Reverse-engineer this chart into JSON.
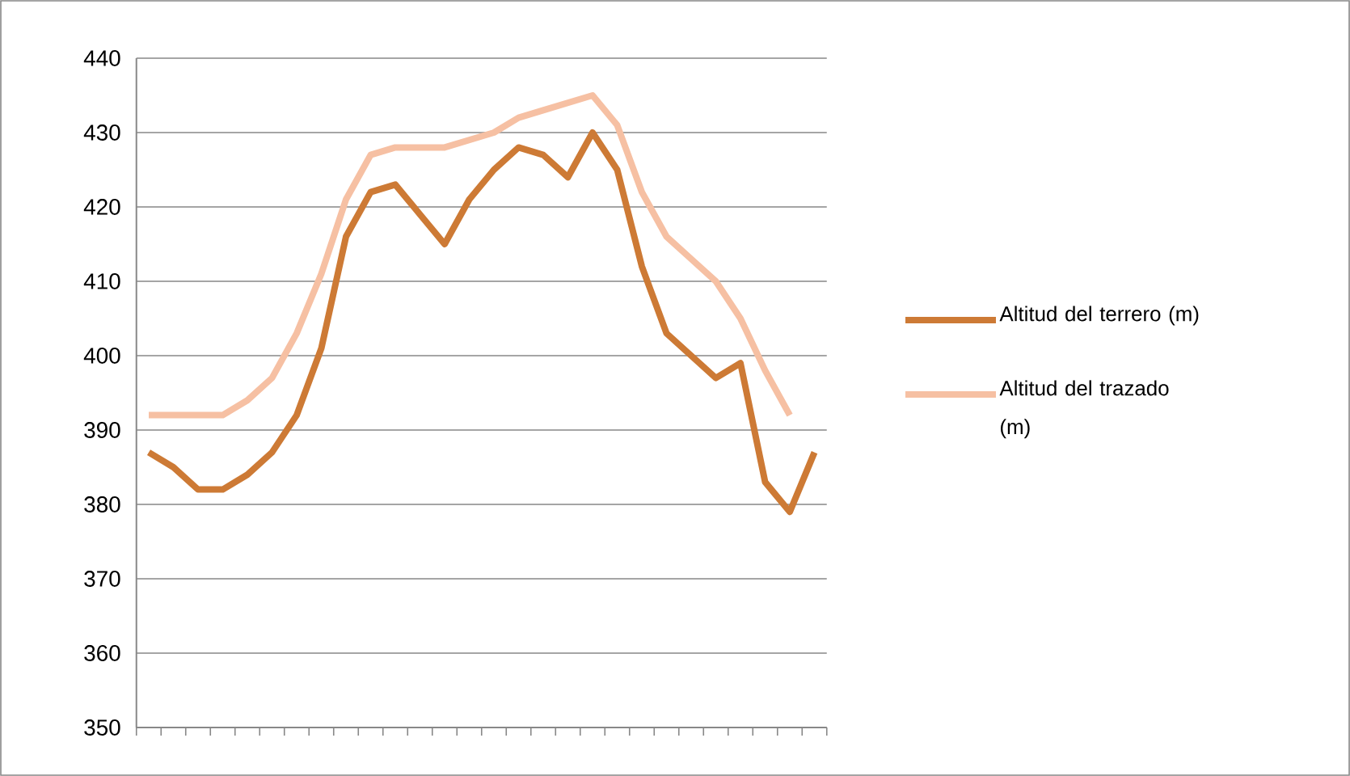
{
  "chart_data": {
    "type": "line",
    "categories": [
      null,
      null,
      null,
      null,
      null,
      null,
      null,
      null,
      null,
      null,
      null,
      null,
      null,
      null,
      null,
      null,
      null,
      null,
      null,
      null,
      null,
      null,
      null,
      null,
      null,
      null,
      null,
      null
    ],
    "series": [
      {
        "name": "Altitud del terrero (m)",
        "color": "#cd7a35",
        "values": [
          387,
          385,
          382,
          382,
          384,
          387,
          392,
          401,
          416,
          422,
          423,
          419,
          415,
          421,
          425,
          428,
          427,
          424,
          430,
          425,
          412,
          403,
          400,
          397,
          399,
          383,
          379,
          387
        ]
      },
      {
        "name": "Altitud del trazado (m)",
        "color": "#f6c0a3",
        "values": [
          392,
          392,
          392,
          392,
          394,
          397,
          403,
          411,
          421,
          427,
          428,
          428,
          428,
          429,
          430,
          432,
          433,
          434,
          435,
          431,
          422,
          416,
          413,
          410,
          405,
          398,
          392,
          null
        ]
      }
    ],
    "ylim": [
      350,
      440
    ],
    "yticks": [
      350,
      360,
      370,
      380,
      390,
      400,
      410,
      420,
      430,
      440
    ],
    "grid": "y",
    "legend": "right",
    "line_style": "solid"
  }
}
